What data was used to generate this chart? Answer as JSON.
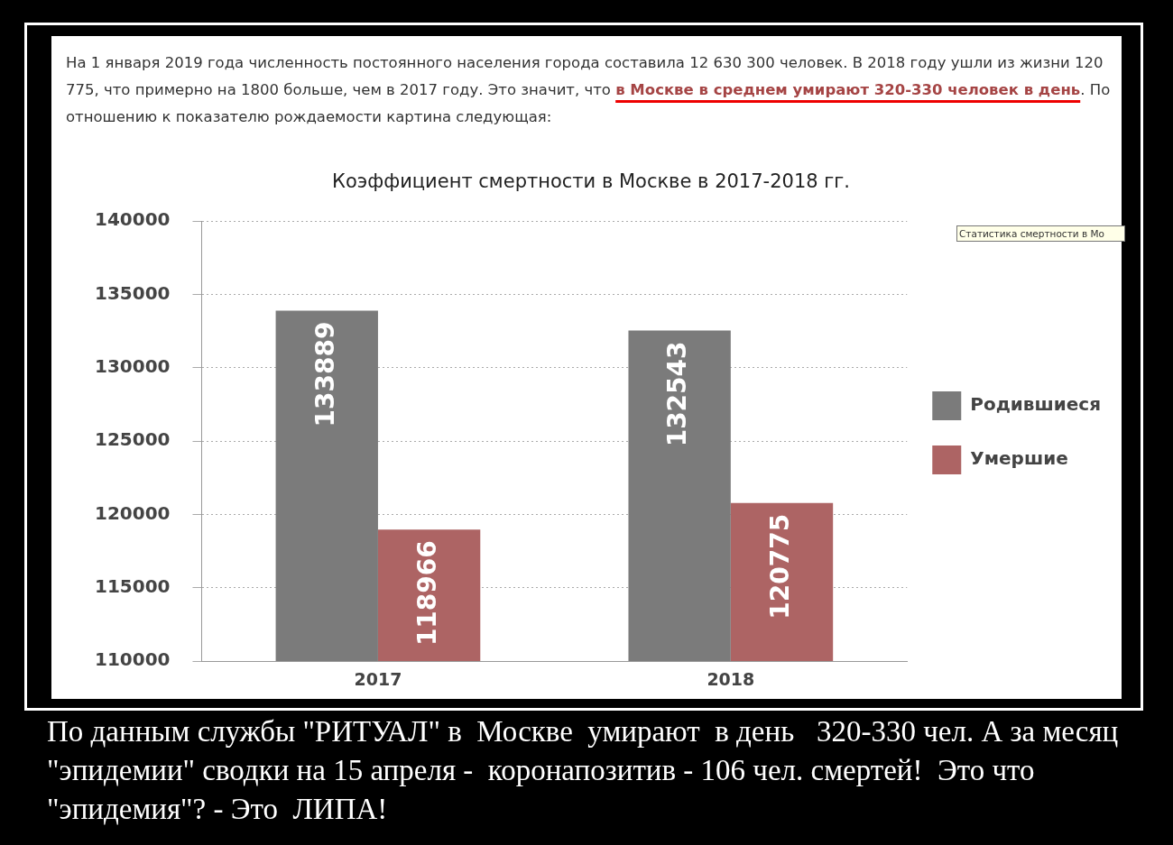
{
  "chart_data": {
    "type": "bar",
    "title": "Коэффициент смертности в Москве в 2017-2018 гг.",
    "categories": [
      "2017",
      "2018"
    ],
    "series": [
      {
        "name": "Родившиеся",
        "color": "#7b7b7b",
        "values": [
          133889,
          132543
        ]
      },
      {
        "name": "Умершие",
        "color": "#ad6464",
        "values": [
          118966,
          120775
        ]
      }
    ],
    "ylim": [
      110000,
      140000
    ],
    "yticks": [
      110000,
      115000,
      120000,
      125000,
      130000,
      135000,
      140000
    ],
    "grid": "y",
    "legend": "right",
    "data_labels": true,
    "annotations": [
      "На 1 января 2019 года численность постоянного населения города составила 12 630 300 человек. В 2018 году ушли из жизни 120 775, что примерно на 1800 больше, чем в 2017 году. Это значит, что",
      "в Москве в среднем умирают 320-330 человек в день",
      ". По отношению к показателю рождаемости картина следующая:",
      "По данным службы \"РИТУАЛ\" в  Москве  умирают  в день   320-330 чел. А за месяц \"эпидемии\" сводки на 15 апреля -  коронапозитив - 106 чел. смертей!  Это что \"эпидемия\"? - Это  ЛИПА!",
      "Статистика смертности в Мо"
    ]
  }
}
